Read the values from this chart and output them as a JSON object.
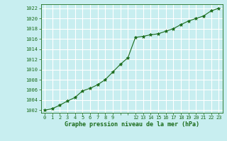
{
  "x": [
    0,
    1,
    2,
    3,
    4,
    5,
    6,
    7,
    8,
    9,
    10,
    11,
    12,
    13,
    14,
    15,
    16,
    17,
    18,
    19,
    20,
    21,
    22,
    23
  ],
  "y": [
    1002.0,
    1002.3,
    1003.0,
    1003.8,
    1004.5,
    1005.8,
    1006.3,
    1007.0,
    1008.0,
    1009.5,
    1011.0,
    1012.3,
    1016.3,
    1016.5,
    1016.8,
    1017.0,
    1017.5,
    1018.0,
    1018.8,
    1019.5,
    1020.0,
    1020.5,
    1021.5,
    1022.0
  ],
  "line_color": "#1a6b1a",
  "marker": "*",
  "marker_color": "#1a6b1a",
  "marker_size": 3.5,
  "bg_color": "#c8eef0",
  "grid_color": "#ffffff",
  "xlabel": "Graphe pression niveau de la mer (hPa)",
  "xlabel_color": "#1a6b1a",
  "tick_color": "#1a6b1a",
  "ytick_labels": [
    1002,
    1004,
    1006,
    1008,
    1010,
    1012,
    1014,
    1016,
    1018,
    1020,
    1022
  ],
  "ylim": [
    1001.5,
    1022.8
  ],
  "xlim": [
    -0.5,
    23.5
  ],
  "figsize": [
    3.2,
    2.0
  ],
  "dpi": 100
}
